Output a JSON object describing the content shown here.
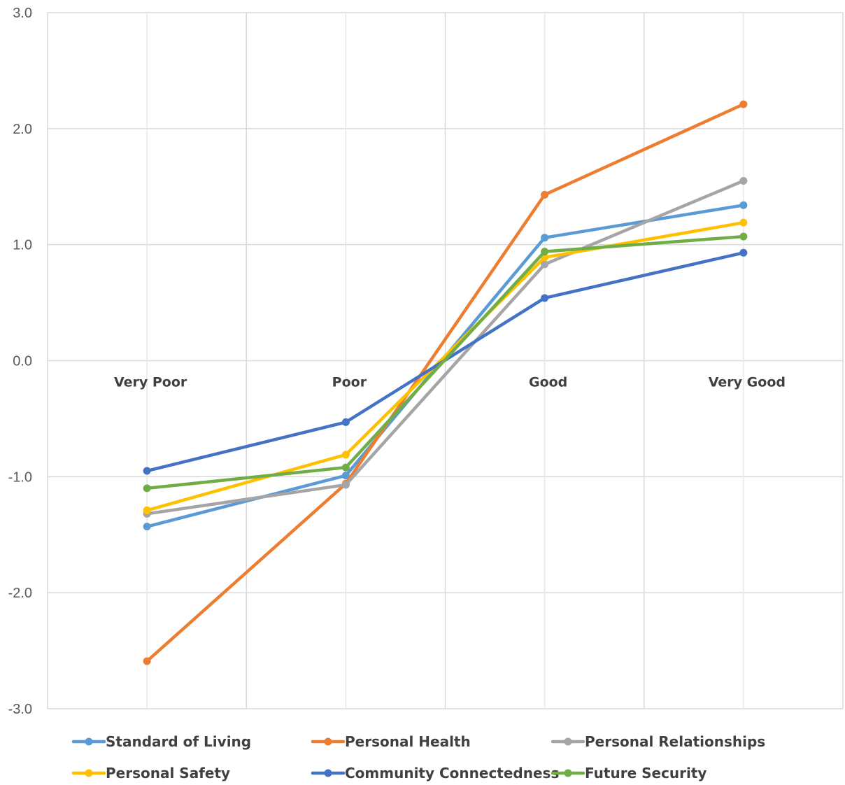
{
  "chart_data": {
    "type": "line",
    "title": "",
    "xlabel": "",
    "ylabel": "",
    "categories": [
      "Very Poor",
      "Poor",
      "Good",
      "Very Good"
    ],
    "x_positions": [
      0.5,
      1.5,
      2.5,
      3.5
    ],
    "xlim": [
      0,
      4
    ],
    "ylim": [
      -3,
      3
    ],
    "yticks": [
      -3,
      -2,
      -1,
      0,
      1,
      2,
      3
    ],
    "ytick_labels": [
      "-3.0",
      "-2.0",
      "-1.0",
      "0.0",
      "1.0",
      "2.0",
      "3.0"
    ],
    "grid": true,
    "legend_position": "bottom",
    "series": [
      {
        "name": "Standard of Living",
        "color": "#5B9BD5",
        "values": [
          -1.43,
          -0.99,
          1.06,
          1.34
        ]
      },
      {
        "name": "Personal Health",
        "color": "#ED7D31",
        "values": [
          -2.59,
          -1.06,
          1.43,
          2.21
        ]
      },
      {
        "name": "Personal Relationships",
        "color": "#A5A5A5",
        "values": [
          -1.32,
          -1.07,
          0.83,
          1.55
        ]
      },
      {
        "name": "Personal Safety",
        "color": "#FFC000",
        "values": [
          -1.29,
          -0.81,
          0.89,
          1.19
        ]
      },
      {
        "name": "Community Connectedness",
        "color": "#4472C4",
        "values": [
          -0.95,
          -0.53,
          0.54,
          0.93
        ]
      },
      {
        "name": "Future Security",
        "color": "#70AD47",
        "values": [
          -1.1,
          -0.92,
          0.94,
          1.07
        ]
      }
    ]
  }
}
